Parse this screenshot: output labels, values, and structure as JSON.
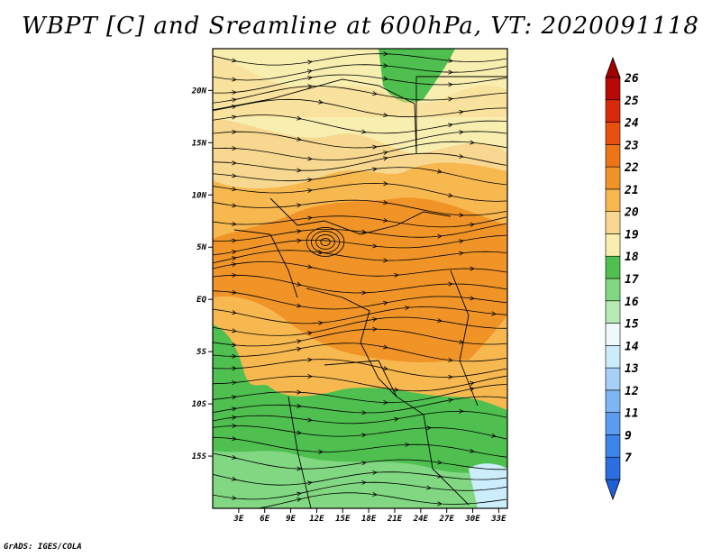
{
  "title": "WBPT [C] and Sreamline at 600hPa, VT: 2020091118",
  "footer": "GrADS: IGES/COLA",
  "map": {
    "lon_range": [
      0,
      34
    ],
    "lat_range": [
      -20,
      24
    ],
    "lon_ticks": [
      "3E",
      "6E",
      "9E",
      "12E",
      "15E",
      "18E",
      "21E",
      "24E",
      "27E",
      "30E",
      "33E"
    ],
    "lon_tick_values": [
      3,
      6,
      9,
      12,
      15,
      18,
      21,
      24,
      27,
      30,
      33
    ],
    "lat_ticks": [
      "20N",
      "15N",
      "10N",
      "5N",
      "EQ",
      "5S",
      "10S",
      "15S"
    ],
    "lat_tick_values": [
      20,
      15,
      10,
      5,
      0,
      -5,
      -10,
      -15
    ]
  },
  "colorbar": {
    "labels": [
      "7",
      "9",
      "11",
      "12",
      "13",
      "14",
      "15",
      "16",
      "17",
      "18",
      "19",
      "20",
      "21",
      "22",
      "23",
      "24",
      "25",
      "26"
    ],
    "colors": [
      "#2a6ee0",
      "#3c84ea",
      "#5a9cf0",
      "#7eb6f4",
      "#a6d0f8",
      "#cceefc",
      "#eefafc",
      "#b8eab4",
      "#82d882",
      "#4fc04f",
      "#f8eeb0",
      "#f8d890",
      "#f8b850",
      "#f09428",
      "#ee7418",
      "#e85010",
      "#d82a0a",
      "#b80808"
    ],
    "below_color": "#1f5fd6",
    "above_color": "#a00000"
  },
  "regions": [
    {
      "name": "north-light",
      "color": "#f8eeb0"
    },
    {
      "name": "sahel-band",
      "color": "#f8d890"
    },
    {
      "name": "equatorial-core",
      "color": "#f09428"
    },
    {
      "name": "southern-belt",
      "color": "#f8b850"
    },
    {
      "name": "south-green",
      "color": "#4fc04f"
    },
    {
      "name": "northeast-green",
      "color": "#4fc04f"
    }
  ]
}
